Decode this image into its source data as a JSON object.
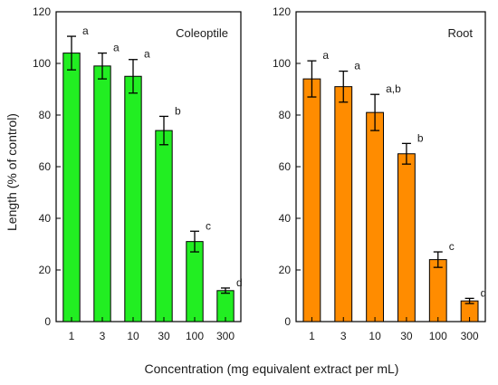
{
  "figure": {
    "shared_ylabel": "Length   (% of control)",
    "shared_xlabel": "Concentration (mg equivalent extract per mL)"
  },
  "chart_data": [
    {
      "type": "bar",
      "title": "Coleoptile",
      "categories": [
        "1",
        "3",
        "10",
        "30",
        "100",
        "300"
      ],
      "values": [
        104,
        99,
        95,
        74,
        31,
        12
      ],
      "errors": [
        6.5,
        5,
        6.5,
        5.5,
        4,
        1
      ],
      "letters": [
        "a",
        "a",
        "a",
        "b",
        "c",
        "d"
      ],
      "ylim": [
        0,
        120
      ],
      "yticks": [
        0,
        20,
        40,
        60,
        80,
        100,
        120
      ],
      "color": "#22ee22"
    },
    {
      "type": "bar",
      "title": "Root",
      "categories": [
        "1",
        "3",
        "10",
        "30",
        "100",
        "300"
      ],
      "values": [
        94,
        91,
        81,
        65,
        24,
        8
      ],
      "errors": [
        7,
        6,
        7,
        4,
        3,
        1
      ],
      "letters": [
        "a",
        "a",
        "a,b",
        "b",
        "c",
        "d"
      ],
      "ylim": [
        0,
        120
      ],
      "yticks": [
        0,
        20,
        40,
        60,
        80,
        100,
        120
      ],
      "color": "#ff8c00"
    }
  ]
}
